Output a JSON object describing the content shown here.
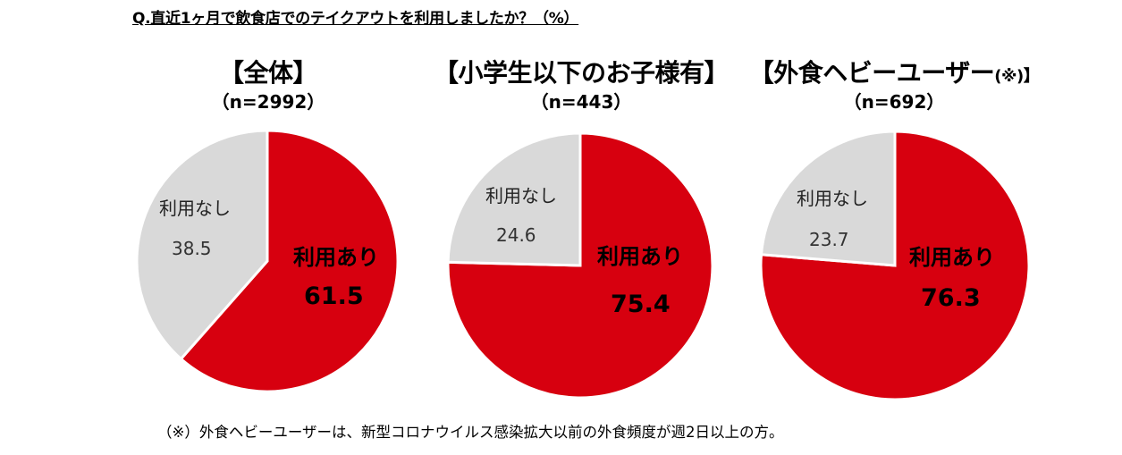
{
  "question": "Q.直近1ヶ月で飲食店でのテイクアウトを利用しましたか？（%）",
  "footnote": "（※）外食ヘビーユーザーは、新型コロナウイルス感染拡大以前の外食頻度が週2日以上の方。",
  "colors": {
    "yes": "#d7000f",
    "no": "#d9d9d9",
    "stroke": "#ffffff"
  },
  "chart_data": [
    {
      "type": "pie",
      "title": "【全体】",
      "title_note": "",
      "n_label": "（n=2992）",
      "slices": [
        {
          "label": "利用あり",
          "value": 61.5,
          "value_text": "61.5"
        },
        {
          "label": "利用なし",
          "value": 38.5,
          "value_text": "38.5"
        }
      ]
    },
    {
      "type": "pie",
      "title": "【小学生以下のお子様有】",
      "title_note": "",
      "n_label": "（n=443）",
      "slices": [
        {
          "label": "利用あり",
          "value": 75.4,
          "value_text": "75.4"
        },
        {
          "label": "利用なし",
          "value": 24.6,
          "value_text": "24.6"
        }
      ]
    },
    {
      "type": "pie",
      "title": "【外食ヘビーユーザー",
      "title_note": "(※)】",
      "n_label": "（n=692）",
      "slices": [
        {
          "label": "利用あり",
          "value": 76.3,
          "value_text": "76.3"
        },
        {
          "label": "利用なし",
          "value": 23.7,
          "value_text": "23.7"
        }
      ]
    }
  ]
}
